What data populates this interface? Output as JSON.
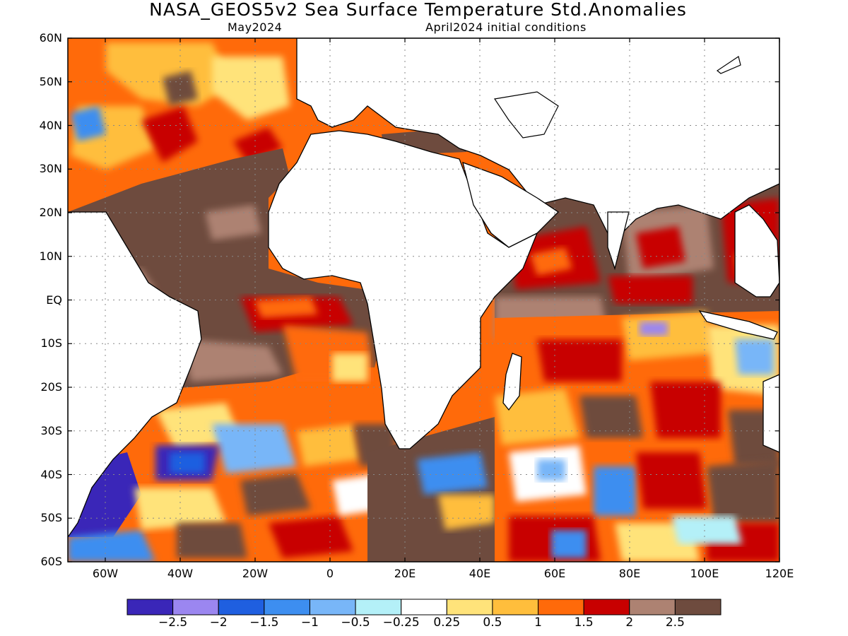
{
  "title": "NASA_GEOS5v2 Sea Surface Temperature Std.Anomalies",
  "subtitle_left": "May2024",
  "subtitle_right": "April2024 initial conditions",
  "map": {
    "lon_range": [
      -70,
      120
    ],
    "lat_range": [
      -60,
      60
    ],
    "lat_ticks": [
      "60N",
      "50N",
      "40N",
      "30N",
      "20N",
      "10N",
      "EQ",
      "10S",
      "20S",
      "30S",
      "40S",
      "50S",
      "60S"
    ],
    "lon_ticks": [
      "60W",
      "40W",
      "20W",
      "0",
      "20E",
      "40E",
      "60E",
      "80E",
      "100E",
      "120E"
    ],
    "land_color": "#ffffff",
    "grid": "dotted"
  },
  "colorbar": {
    "colors": [
      "#3a26b8",
      "#9b86f0",
      "#1f5fe0",
      "#3d8ef0",
      "#78b6f8",
      "#b4f0f8",
      "#ffffff",
      "#ffe37a",
      "#ffbe3c",
      "#ff6a0a",
      "#c80000",
      "#ad8272",
      "#6e4b3e"
    ],
    "labels": [
      "−2.5",
      "−2",
      "−1.5",
      "−1",
      "−0.5",
      "−0.25",
      "0.25",
      "0.5",
      "1",
      "1.5",
      "2",
      "2.5"
    ]
  }
}
